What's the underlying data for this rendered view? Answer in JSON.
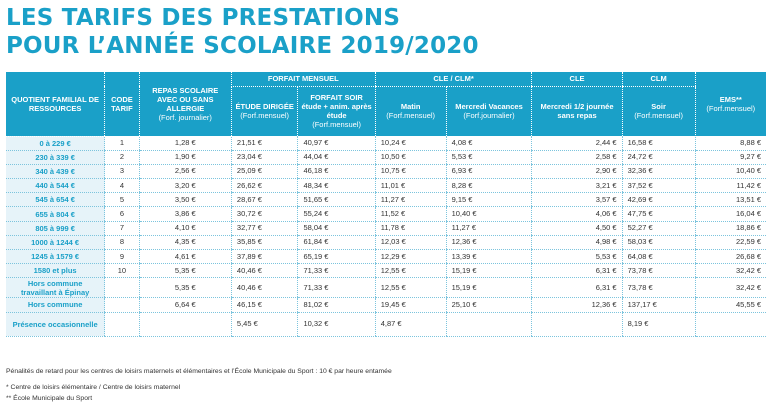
{
  "title": {
    "line1": "LES TARIFS DES PRESTATIONS",
    "line2": "POUR L’ANNÉE SCOLAIRE 2019/2020"
  },
  "header": {
    "quotient": "QUOTIENT FAMILIAL DE RESSOURCES",
    "code": "CODE TARIF",
    "repas": "REPAS SCOLAIRE AVEC OU SANS ALLERGIE",
    "repas_sub": "(Forf. journalier)",
    "forfait_mensuel": "FORFAIT MENSUEL",
    "etude": "ÉTUDE DIRIGÉE",
    "etude_sub": "(Forf.mensuel)",
    "forfait_soir": "FORFAIT SOIR étude + anim. après étude",
    "forfait_soir_sub": "(Forf.mensuel)",
    "cle_clm": "CLE / CLM*",
    "cle": "CLE",
    "clm": "CLM",
    "matin": "Matin",
    "matin_sub": "(Forf.mensuel)",
    "mercredi_vac": "Mercredi Vacances",
    "mercredi_vac_sub": "(Forf.journalier)",
    "mercredi_demi": "Mercredi 1/2 journée sans repas",
    "soir": "Soir",
    "soir_sub": "(Forf.mensuel)",
    "ems": "EMS**",
    "ems_sub": "(Forf.mensuel)"
  },
  "rows": [
    {
      "q": "0 à 229 €",
      "code": "1",
      "repas": "1,28 €",
      "etude": "21,51 €",
      "soir_fm": "40,97 €",
      "matin": "10,24 €",
      "mvac": "4,08 €",
      "mdemi": "2,44 €",
      "soir": "16,58 €",
      "ems": "8,88 €"
    },
    {
      "q": "230 à 339 €",
      "code": "2",
      "repas": "1,90 €",
      "etude": "23,04 €",
      "soir_fm": "44,04 €",
      "matin": "10,50 €",
      "mvac": "5,53 €",
      "mdemi": "2,58 €",
      "soir": "24,72 €",
      "ems": "9,27 €"
    },
    {
      "q": "340 à 439 €",
      "code": "3",
      "repas": "2,56 €",
      "etude": "25,09 €",
      "soir_fm": "46,18 €",
      "matin": "10,75 €",
      "mvac": "6,93 €",
      "mdemi": "2,90 €",
      "soir": "32,36 €",
      "ems": "10,40 €"
    },
    {
      "q": "440 à 544 €",
      "code": "4",
      "repas": "3,20 €",
      "etude": "26,62 €",
      "soir_fm": "48,34 €",
      "matin": "11,01 €",
      "mvac": "8,28 €",
      "mdemi": "3,21 €",
      "soir": "37,52 €",
      "ems": "11,42 €"
    },
    {
      "q": "545 à 654 €",
      "code": "5",
      "repas": "3,50 €",
      "etude": "28,67 €",
      "soir_fm": "51,65 €",
      "matin": "11,27 €",
      "mvac": "9,15 €",
      "mdemi": "3,57 €",
      "soir": "42,69 €",
      "ems": "13,51 €"
    },
    {
      "q": "655 à 804 €",
      "code": "6",
      "repas": "3,86 €",
      "etude": "30,72 €",
      "soir_fm": "55,24 €",
      "matin": "11,52 €",
      "mvac": "10,40 €",
      "mdemi": "4,06 €",
      "soir": "47,75 €",
      "ems": "16,04 €"
    },
    {
      "q": "805 à 999 €",
      "code": "7",
      "repas": "4,10 €",
      "etude": "32,77 €",
      "soir_fm": "58,04 €",
      "matin": "11,78 €",
      "mvac": "11,27 €",
      "mdemi": "4,50 €",
      "soir": "52,27 €",
      "ems": "18,86 €"
    },
    {
      "q": "1000 à 1244 €",
      "code": "8",
      "repas": "4,35 €",
      "etude": "35,85 €",
      "soir_fm": "61,84 €",
      "matin": "12,03 €",
      "mvac": "12,36 €",
      "mdemi": "4,98 €",
      "soir": "58,03 €",
      "ems": "22,59 €"
    },
    {
      "q": "1245 à 1579 €",
      "code": "9",
      "repas": "4,61 €",
      "etude": "37,89 €",
      "soir_fm": "65,19 €",
      "matin": "12,29 €",
      "mvac": "13,39 €",
      "mdemi": "5,53 €",
      "soir": "64,08 €",
      "ems": "26,68 €"
    },
    {
      "q": "1580 et plus",
      "code": "10",
      "repas": "5,35 €",
      "etude": "40,46 €",
      "soir_fm": "71,33 €",
      "matin": "12,55 €",
      "mvac": "15,19 €",
      "mdemi": "6,31 €",
      "soir": "73,78 €",
      "ems": "32,42 €"
    },
    {
      "q": "Hors commune travaillant à Épinay",
      "code": "",
      "repas": "5,35 €",
      "etude": "40,46 €",
      "soir_fm": "71,33 €",
      "matin": "12,55 €",
      "mvac": "15,19 €",
      "mdemi": "6,31 €",
      "soir": "73,78 €",
      "ems": "32,42 €"
    },
    {
      "q": "Hors commune",
      "code": "",
      "repas": "6,64 €",
      "etude": "46,15 €",
      "soir_fm": "81,02 €",
      "matin": "19,45 €",
      "mvac": "25,10 €",
      "mdemi": "12,36 €",
      "soir": "137,17 €",
      "ems": "45,55 €"
    },
    {
      "q": "Présence occasionnelle",
      "code": "",
      "repas": "",
      "etude": "5,45 €",
      "soir_fm": "10,32 €",
      "matin": "4,87 €",
      "mvac": "",
      "mdemi": "",
      "soir": "8,19 €",
      "ems": ""
    }
  ],
  "notes": {
    "penalites": "Pénalités de retard pour les centres de loisirs maternels et élémentaires et l’École Municipale du Sport : 10 € par heure entamée",
    "footnote1": "* Centre de loisirs élémentaire / Centre de loisirs maternel",
    "footnote2": "** École Municipale du Sport"
  }
}
